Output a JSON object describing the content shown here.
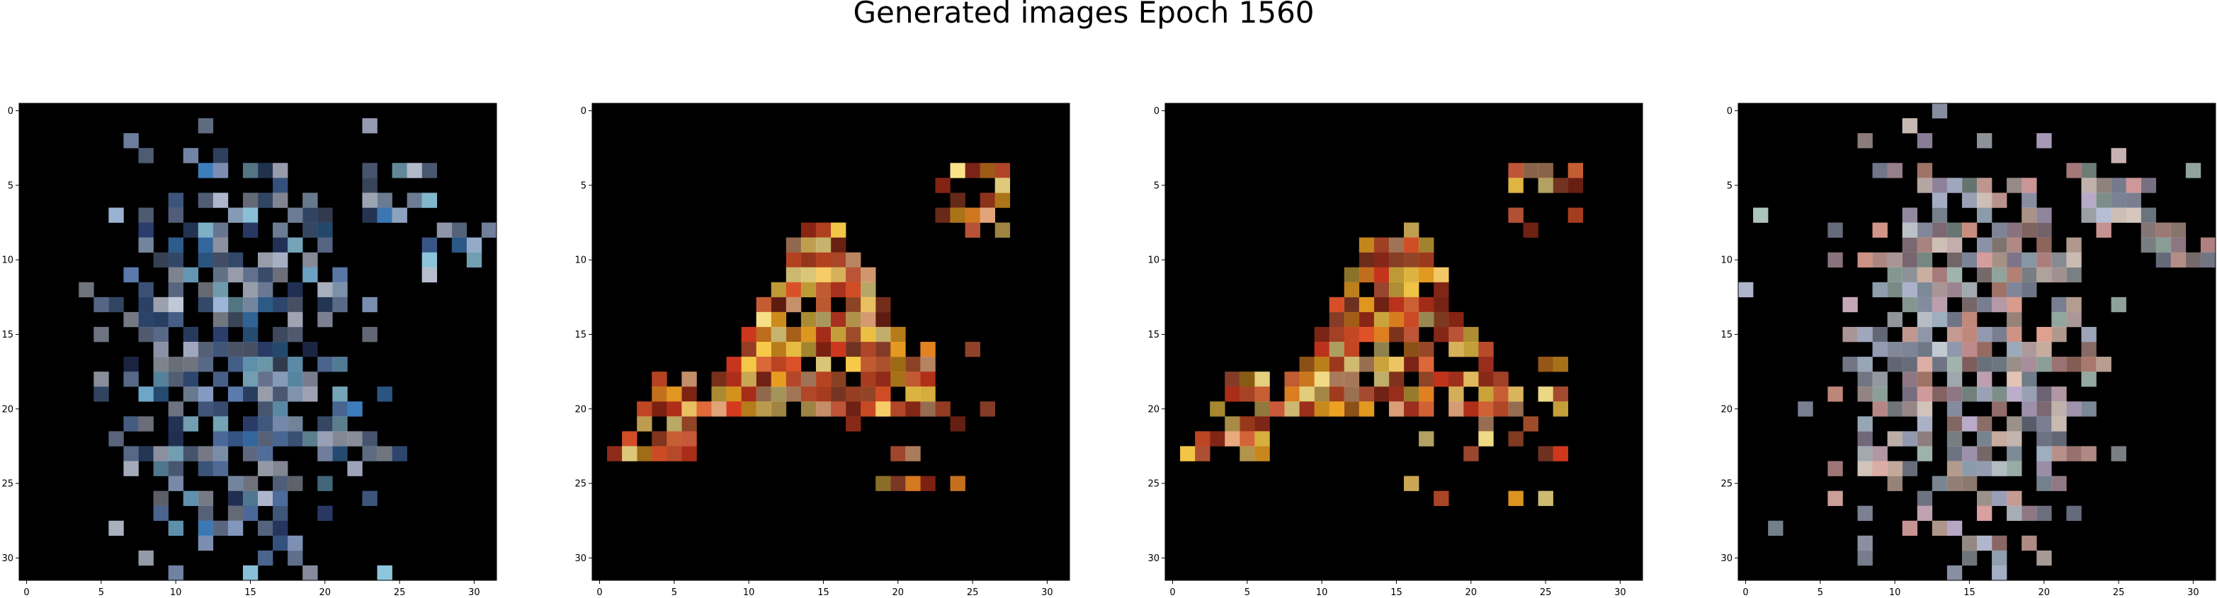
{
  "figure": {
    "title": "Generated images Epoch 1560"
  },
  "chart_data": {
    "type": "heatmap",
    "description_note": "",
    "image_size": 32,
    "background_color": "#000000",
    "panels": [
      {
        "name": "sample-1",
        "palette": "cool",
        "xticks": [
          "0",
          "5",
          "10",
          "15",
          "20",
          "25",
          "30"
        ],
        "yticks": [
          "0",
          "5",
          "10",
          "15",
          "20",
          "25",
          "30"
        ],
        "xlim": [
          -0.5,
          31.5
        ],
        "ylim": [
          31.5,
          -0.5
        ]
      },
      {
        "name": "sample-2",
        "palette": "warm",
        "xticks": [
          "0",
          "5",
          "10",
          "15",
          "20",
          "25",
          "30"
        ],
        "yticks": [
          "0",
          "5",
          "10",
          "15",
          "20",
          "25",
          "30"
        ],
        "xlim": [
          -0.5,
          31.5
        ],
        "ylim": [
          31.5,
          -0.5
        ]
      },
      {
        "name": "sample-3",
        "palette": "warm",
        "xticks": [
          "0",
          "5",
          "10",
          "15",
          "20",
          "25",
          "30"
        ],
        "yticks": [
          "0",
          "5",
          "10",
          "15",
          "20",
          "25",
          "30"
        ],
        "xlim": [
          -0.5,
          31.5
        ],
        "ylim": [
          31.5,
          -0.5
        ]
      },
      {
        "name": "sample-4",
        "palette": "pastel",
        "xticks": [
          "0",
          "5",
          "10",
          "15",
          "20",
          "25",
          "30"
        ],
        "yticks": [
          "0",
          "5",
          "10",
          "15",
          "20",
          "25",
          "30"
        ],
        "xlim": [
          -0.5,
          31.5
        ],
        "ylim": [
          31.5,
          -0.5
        ]
      }
    ]
  }
}
